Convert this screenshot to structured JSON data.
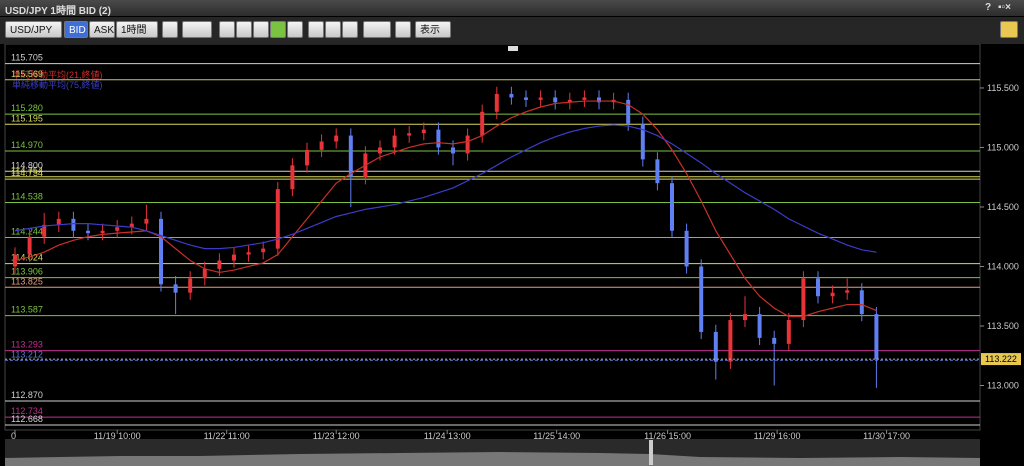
{
  "ui": {
    "window_title": "USD/JPY 1時間 BID (2)",
    "help": "?",
    "symbol": "USD/JPY",
    "bid": "BID",
    "ask": "ASK",
    "period": "1時間",
    "view": "表示"
  },
  "chart_data": {
    "type": "candlestick",
    "up_color": "#e8333a",
    "down_color": "#5f7ff2",
    "xlim": [
      0,
      59
    ],
    "xticks": [
      0,
      {
        "value": 7,
        "label": "11/19 10:00"
      },
      {
        "value": 14.5,
        "label": "11/22 11:00"
      },
      {
        "value": 22,
        "label": "11/23 12:00"
      },
      {
        "value": 29.6,
        "label": "11/24 13:00"
      },
      {
        "value": 37.1,
        "label": "11/25 14:00"
      },
      {
        "value": 44.7,
        "label": "11/26 15:00"
      },
      {
        "value": 52.2,
        "label": "11/29 16:00"
      },
      {
        "value": 59.7,
        "label": "11/30 17:00"
      }
    ],
    "ylim": [
      112.626,
      115.861
    ],
    "yticks": [
      {
        "value": 113,
        "label": "113.000"
      },
      {
        "value": 113.5,
        "label": "113.500"
      },
      {
        "value": 114,
        "label": "114.000"
      },
      {
        "value": 114.5,
        "label": "114.500"
      },
      {
        "value": 115,
        "label": "115.000"
      },
      {
        "value": 115.5,
        "label": "115.500"
      }
    ],
    "candles": {
      "open": [
        114.0,
        114.1,
        114.25,
        114.35,
        114.4,
        114.3,
        114.28,
        114.3,
        114.33,
        114.36,
        114.4,
        113.85,
        113.78,
        113.9,
        113.98,
        114.05,
        114.1,
        114.12,
        114.15,
        114.65,
        114.85,
        114.98,
        115.05,
        115.1,
        114.75,
        114.95,
        115.0,
        115.1,
        115.12,
        115.15,
        115.0,
        114.95,
        115.1,
        115.3,
        115.45,
        115.42,
        115.4,
        115.42,
        115.38,
        115.4,
        115.42,
        115.38,
        115.4,
        115.2,
        114.9,
        114.7,
        114.3,
        114.0,
        113.45,
        113.2,
        113.55,
        113.6,
        113.4,
        113.35,
        113.55,
        113.9,
        113.75,
        113.78,
        113.8,
        113.6
      ],
      "high": [
        114.16,
        114.31,
        114.45,
        114.46,
        114.46,
        114.36,
        114.36,
        114.39,
        114.42,
        114.52,
        114.46,
        113.92,
        113.96,
        114.04,
        114.11,
        114.16,
        114.18,
        114.21,
        114.71,
        114.91,
        115.04,
        115.11,
        115.16,
        115.16,
        115.01,
        115.06,
        115.16,
        115.18,
        115.21,
        115.21,
        115.06,
        115.16,
        115.36,
        115.51,
        115.51,
        115.48,
        115.48,
        115.48,
        115.46,
        115.48,
        115.48,
        115.46,
        115.46,
        115.26,
        114.96,
        114.76,
        114.36,
        114.06,
        113.51,
        113.61,
        113.75,
        113.66,
        113.46,
        113.61,
        113.96,
        113.96,
        113.84,
        113.9,
        113.86,
        113.66
      ],
      "low": [
        113.94,
        114.04,
        114.19,
        114.29,
        114.24,
        114.22,
        114.22,
        114.24,
        114.27,
        114.3,
        113.79,
        113.6,
        113.72,
        113.84,
        113.92,
        113.99,
        114.04,
        114.06,
        114.09,
        114.59,
        114.79,
        114.92,
        114.99,
        114.5,
        114.69,
        114.89,
        114.94,
        115.04,
        115.06,
        114.94,
        114.85,
        114.89,
        115.04,
        115.24,
        115.36,
        115.34,
        115.34,
        115.32,
        115.32,
        115.34,
        115.32,
        115.32,
        115.14,
        114.84,
        114.64,
        114.24,
        113.94,
        113.39,
        113.05,
        113.14,
        113.49,
        113.34,
        113.0,
        113.29,
        113.49,
        113.69,
        113.69,
        113.72,
        113.54,
        112.98
      ],
      "close": [
        114.1,
        114.25,
        114.35,
        114.4,
        114.3,
        114.28,
        114.3,
        114.33,
        114.36,
        114.4,
        113.85,
        113.78,
        113.9,
        113.98,
        114.05,
        114.1,
        114.12,
        114.15,
        114.65,
        114.85,
        114.98,
        115.05,
        115.1,
        114.75,
        114.95,
        115.0,
        115.1,
        115.12,
        115.15,
        115.0,
        114.95,
        115.1,
        115.3,
        115.45,
        115.42,
        115.4,
        115.42,
        115.38,
        115.4,
        115.42,
        115.38,
        115.4,
        115.2,
        114.9,
        114.7,
        114.3,
        114.0,
        113.45,
        113.2,
        113.55,
        113.6,
        113.4,
        113.35,
        113.55,
        113.9,
        113.75,
        113.78,
        113.8,
        113.6,
        113.22
      ]
    },
    "series": [
      {
        "name": "単純移動平均(21,終値)",
        "color": "#c8302a",
        "values": [
          114.05,
          114.08,
          114.12,
          114.18,
          114.22,
          114.25,
          114.27,
          114.28,
          114.29,
          114.3,
          114.25,
          114.15,
          114.05,
          113.98,
          113.95,
          113.97,
          114.0,
          114.03,
          114.1,
          114.25,
          114.4,
          114.55,
          114.7,
          114.78,
          114.85,
          114.92,
          114.96,
          115.0,
          115.03,
          115.04,
          115.03,
          115.05,
          115.1,
          115.18,
          115.25,
          115.3,
          115.34,
          115.37,
          115.38,
          115.39,
          115.39,
          115.39,
          115.36,
          115.28,
          115.15,
          114.98,
          114.78,
          114.55,
          114.3,
          114.1,
          113.9,
          113.75,
          113.65,
          113.58,
          113.58,
          113.62,
          113.65,
          113.68,
          113.68,
          113.63
        ]
      },
      {
        "name": "単純移動平均(75,終値)",
        "color": "#3c3cc8",
        "values": [
          114.3,
          114.32,
          114.34,
          114.35,
          114.36,
          114.36,
          114.35,
          114.34,
          114.33,
          114.3,
          114.26,
          114.22,
          114.18,
          114.15,
          114.15,
          114.16,
          114.18,
          114.2,
          114.23,
          114.27,
          114.32,
          114.37,
          114.42,
          114.45,
          114.48,
          114.5,
          114.52,
          114.55,
          114.58,
          114.62,
          114.66,
          114.72,
          114.78,
          114.85,
          114.92,
          114.98,
          115.04,
          115.09,
          115.13,
          115.16,
          115.18,
          115.19,
          115.18,
          115.15,
          115.1,
          115.03,
          114.95,
          114.87,
          114.78,
          114.7,
          114.62,
          114.55,
          114.48,
          114.4,
          114.34,
          114.28,
          114.23,
          114.18,
          114.14,
          114.12
        ]
      }
    ],
    "levels": [
      {
        "value": 115.705,
        "label": "115.705",
        "color": "#d0d0d0"
      },
      {
        "value": 115.569,
        "label": "115.569",
        "color": "#c8c860"
      },
      {
        "value": 115.28,
        "label": "115.280",
        "color": "#7cc242"
      },
      {
        "value": 115.195,
        "label": "115.195",
        "color": "#d8d860"
      },
      {
        "value": 114.97,
        "label": "114.970",
        "color": "#7cc242"
      },
      {
        "value": 114.8,
        "label": "114.800",
        "color": "#d0d0d0"
      },
      {
        "value": 114.754,
        "label": "114.754",
        "color": "#d8d860"
      },
      {
        "value": 114.734,
        "label": "114.734",
        "color": "#d8d860"
      },
      {
        "value": 114.538,
        "label": "114.538",
        "color": "#7cc242"
      },
      {
        "value": 114.244,
        "label": "114.244",
        "color": "#7cc242"
      },
      {
        "value": 114.024,
        "label": "114.024",
        "color": "#d8d860"
      },
      {
        "value": 113.906,
        "label": "113.906",
        "color": "#7cc242"
      },
      {
        "value": 113.825,
        "label": "113.825",
        "color": "#e0a080"
      },
      {
        "value": 113.587,
        "label": "113.587",
        "color": "#7cc242"
      },
      {
        "value": 113.293,
        "label": "113.293",
        "color": "#c03090"
      },
      {
        "value": 113.212,
        "label": "113.212",
        "color": "#5a7adf"
      },
      {
        "value": 112.87,
        "label": "112.870",
        "color": "#d0d0d0"
      },
      {
        "value": 112.734,
        "label": "112.734",
        "color": "#c03090"
      },
      {
        "value": 112.668,
        "label": "112.668",
        "color": "#d0d0d0"
      }
    ],
    "current_price": 113.222
  }
}
